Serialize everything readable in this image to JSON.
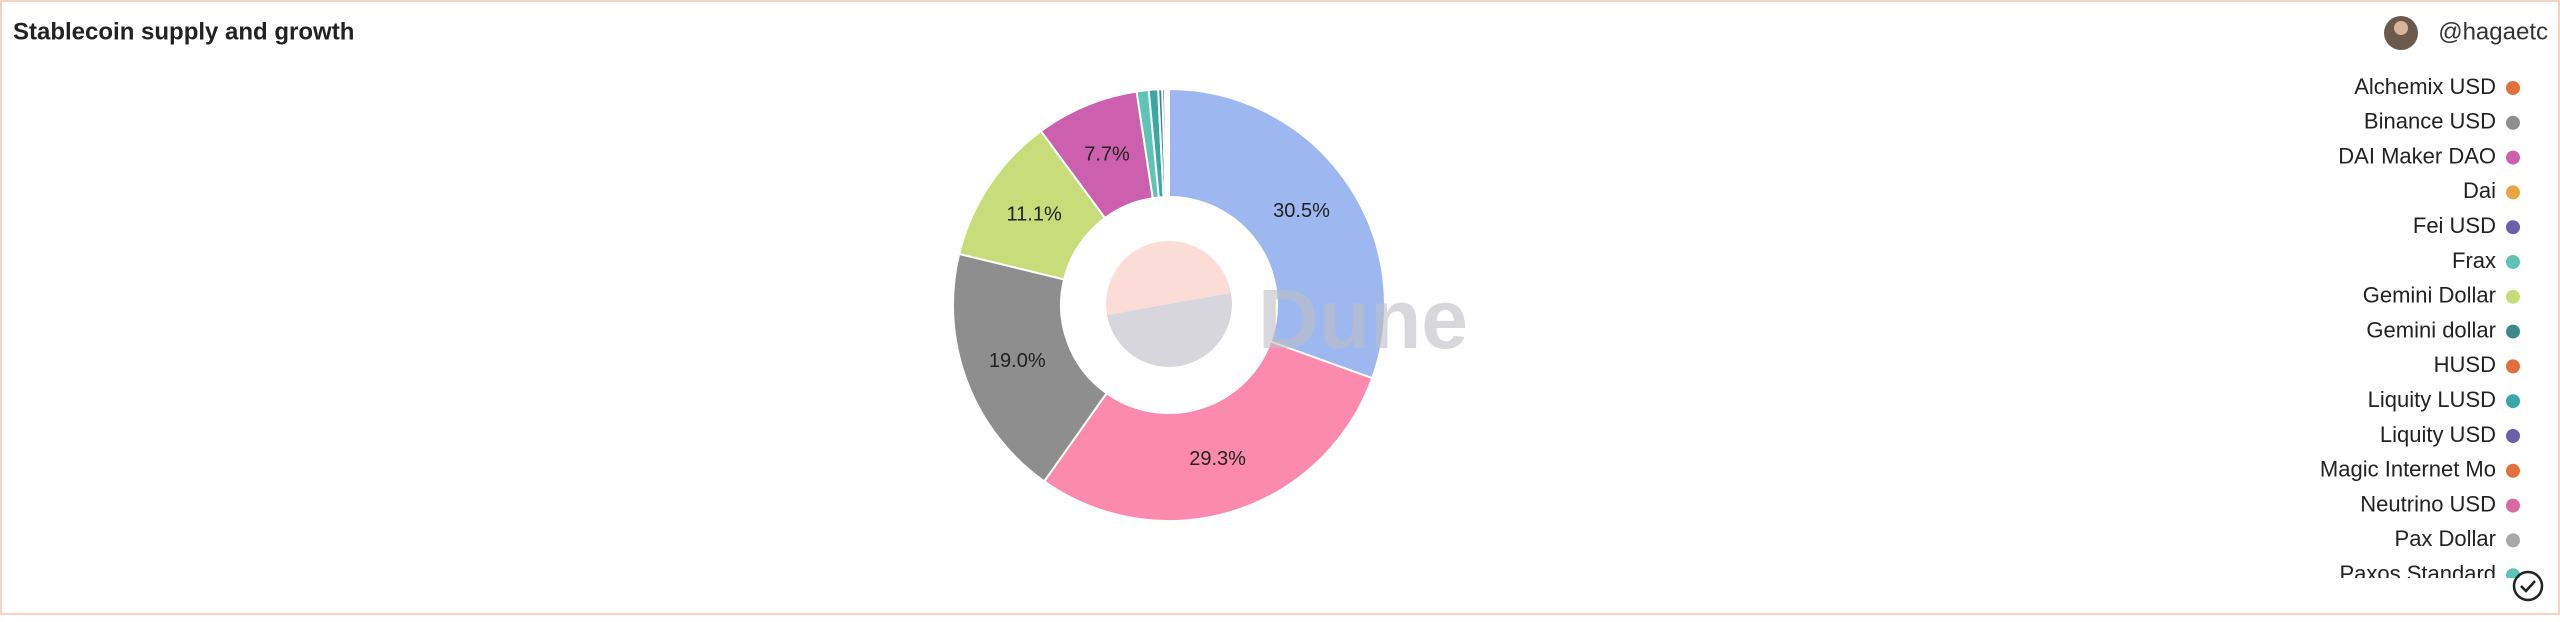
{
  "chart_data": {
    "type": "pie",
    "title": "Stablecoin supply and growth",
    "author": "@hagaetc",
    "watermark": "Dune",
    "values": [
      30.5,
      29.3,
      19.0,
      11.1,
      7.7,
      0.9,
      0.7,
      0.3,
      0.2,
      0.1,
      0.1,
      0.05,
      0.05
    ],
    "value_labels": [
      "30.5%",
      "29.3%",
      "19.0%",
      "11.1%",
      "7.7%",
      null,
      null,
      null,
      null,
      null,
      null,
      null,
      null
    ],
    "colors": [
      "#9db8f0",
      "#fc8aaf",
      "#8e8e8e",
      "#c9dc7a",
      "#cc5fae",
      "#5ec4b6",
      "#3aa8a4",
      "#3e8a88",
      "#6b5fa8",
      "#a8a8a8",
      "#d86aa0",
      "#e2703a",
      "#f1e7c8"
    ],
    "legend": [
      {
        "name": "Alchemix USD",
        "color": "#e2703a"
      },
      {
        "name": "Binance USD",
        "color": "#8e8e8e"
      },
      {
        "name": "DAI Maker DAO",
        "color": "#cc5fae"
      },
      {
        "name": "Dai",
        "color": "#e8a640"
      },
      {
        "name": "Fei USD",
        "color": "#6b5fa8"
      },
      {
        "name": "Frax",
        "color": "#5ec4b6"
      },
      {
        "name": "Gemini Dollar",
        "color": "#c9dc7a"
      },
      {
        "name": "Gemini dollar",
        "color": "#3e8a88"
      },
      {
        "name": "HUSD",
        "color": "#e2703a"
      },
      {
        "name": "Liquity LUSD",
        "color": "#3aa8a4"
      },
      {
        "name": "Liquity USD",
        "color": "#6b5fa8"
      },
      {
        "name": "Magic Internet Mo",
        "color": "#e2703a"
      },
      {
        "name": "Neutrino USD",
        "color": "#d86aa0"
      },
      {
        "name": "Pax Dollar",
        "color": "#a8a8a8"
      },
      {
        "name": "Paxos Standard",
        "color": "#5ec4b6"
      }
    ]
  }
}
